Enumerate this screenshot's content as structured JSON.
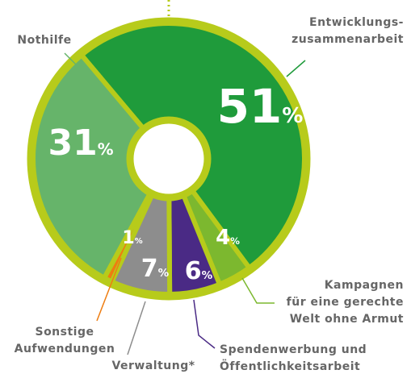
{
  "chart_data": {
    "type": "pie",
    "donut": true,
    "categories": [
      "Entwicklungs-\nzusammenarbeit",
      "Kampagnen\nfür eine gerechte\nWelt ohne Armut",
      "Spendenwerbung und\nÖffentlichkeitsarbeit",
      "Verwaltung*",
      "Sonstige\nAufwendungen",
      "Nothilfe"
    ],
    "values": [
      51,
      4,
      6,
      7,
      1,
      31
    ],
    "value_labels": [
      "51%",
      "4%",
      "6%",
      "7%",
      "1%",
      "31%"
    ],
    "colors": [
      "#1f9b3b",
      "#7cb82f",
      "#4a2a85",
      "#8d8d8d",
      "#ee7d11",
      "#66b46a"
    ]
  }
}
